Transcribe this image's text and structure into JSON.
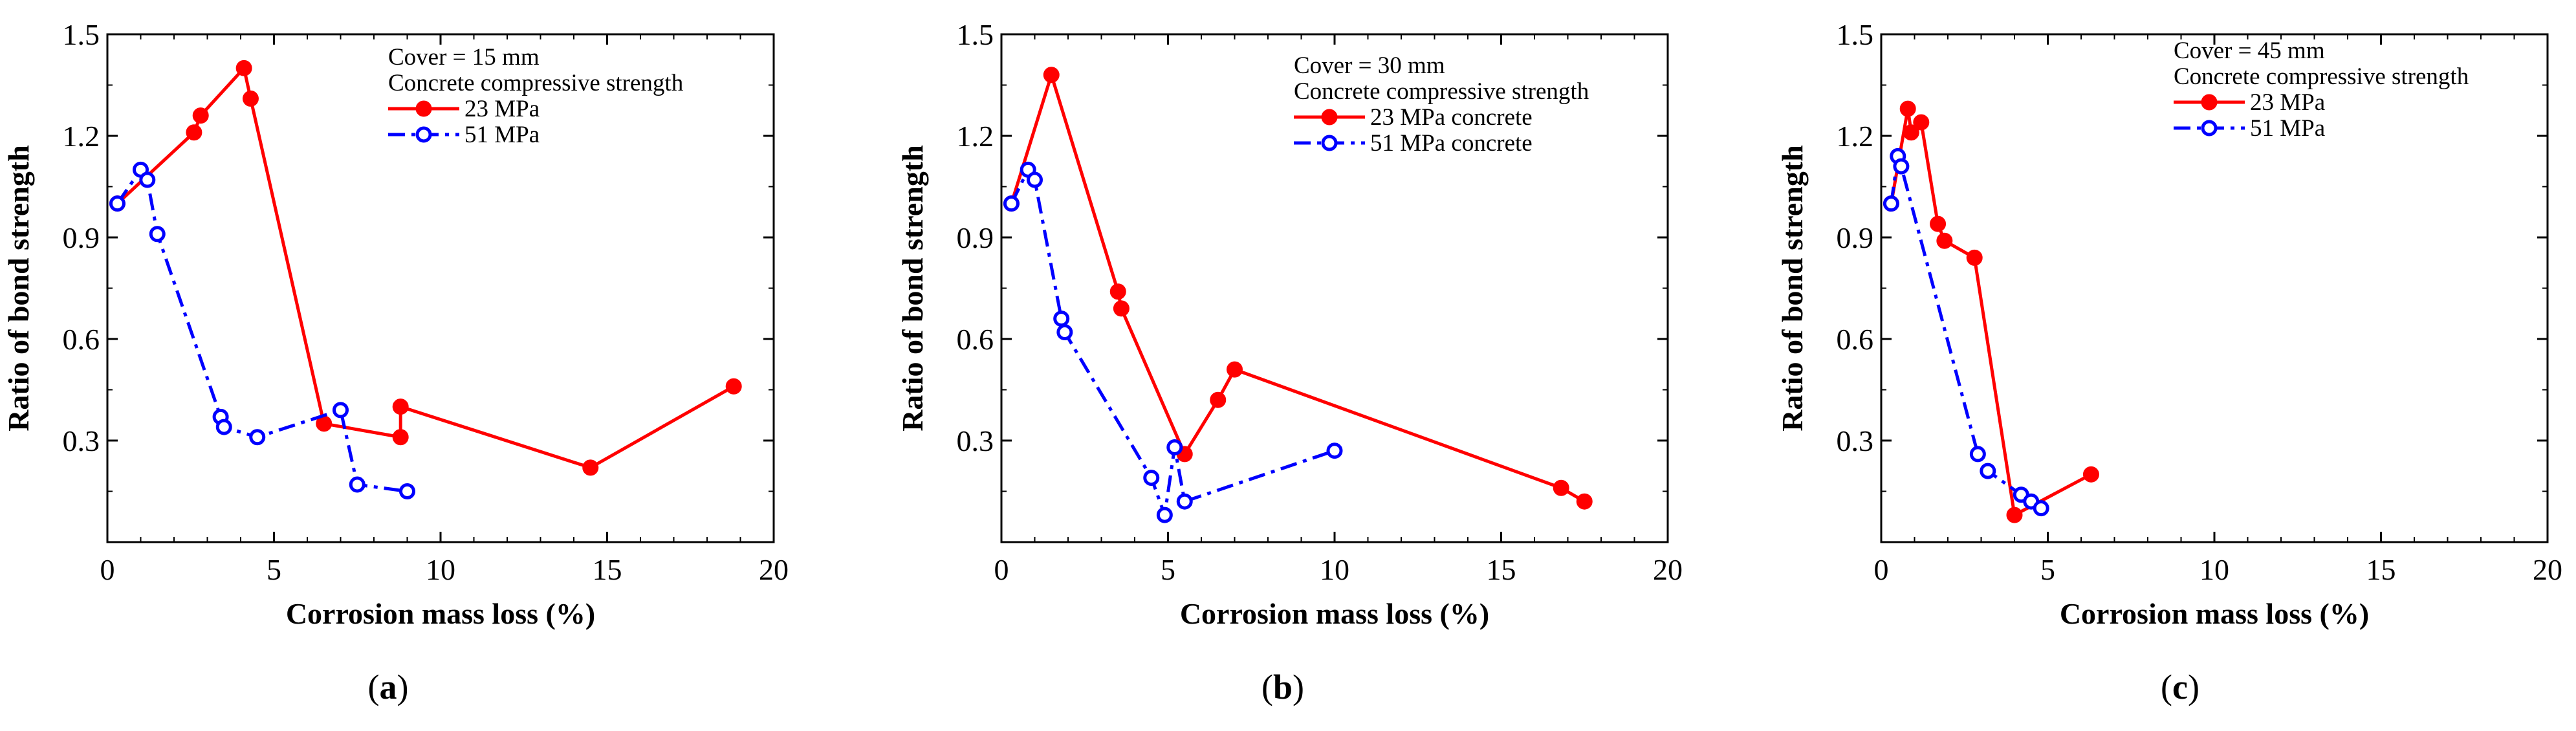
{
  "chart_data": [
    {
      "type": "line",
      "panel_label": "a",
      "xlabel": "Corrosion mass loss (%)",
      "ylabel": "Ratio of bond strength",
      "xlim": [
        0,
        20
      ],
      "ylim": [
        0,
        1.5
      ],
      "xticks": [
        "0",
        "5",
        "10",
        "15",
        "20"
      ],
      "yticks": [
        "0.3",
        "0.6",
        "0.9",
        "1.2",
        "1.5"
      ],
      "legend_title": [
        "Cover = 15 mm",
        "Concrete compressive strength"
      ],
      "legend_position": "top-right",
      "series": [
        {
          "name": "23 MPa",
          "color": "#ff0000",
          "marker": "filled-circle",
          "line": "solid",
          "x": [
            0.3,
            2.6,
            2.8,
            4.1,
            4.3,
            6.5,
            8.8,
            8.8,
            14.5,
            18.8
          ],
          "y": [
            1.0,
            1.21,
            1.26,
            1.4,
            1.31,
            0.35,
            0.31,
            0.4,
            0.22,
            0.46
          ]
        },
        {
          "name": "51 MPa",
          "color": "#0000ff",
          "marker": "open-circle",
          "line": "dash-dot",
          "x": [
            0.3,
            1.0,
            1.2,
            1.5,
            3.4,
            3.5,
            4.5,
            7.0,
            7.5,
            9.0
          ],
          "y": [
            1.0,
            1.1,
            1.07,
            0.91,
            0.37,
            0.34,
            0.31,
            0.39,
            0.17,
            0.15
          ]
        }
      ]
    },
    {
      "type": "line",
      "panel_label": "b",
      "xlabel": "Corrosion mass loss (%)",
      "ylabel": "Ratio of bond strength",
      "xlim": [
        0,
        20
      ],
      "ylim": [
        0,
        1.5
      ],
      "xticks": [
        "0",
        "5",
        "10",
        "15",
        "20"
      ],
      "yticks": [
        "0.3",
        "0.6",
        "0.9",
        "1.2",
        "1.5"
      ],
      "legend_title": [
        "Cover = 30 mm",
        "Concrete compressive strength"
      ],
      "legend_position": "top-right",
      "series": [
        {
          "name": "23 MPa concrete",
          "color": "#ff0000",
          "marker": "filled-circle",
          "line": "solid",
          "x": [
            0.3,
            1.5,
            3.5,
            3.6,
            5.5,
            6.5,
            7.0,
            16.8,
            17.5
          ],
          "y": [
            1.0,
            1.38,
            0.74,
            0.69,
            0.26,
            0.42,
            0.51,
            0.16,
            0.12
          ]
        },
        {
          "name": "51 MPa concrete",
          "color": "#0000ff",
          "marker": "open-circle",
          "line": "dash-dot",
          "x": [
            0.3,
            0.8,
            1.0,
            1.8,
            1.9,
            4.5,
            4.9,
            5.2,
            5.5,
            10.0
          ],
          "y": [
            1.0,
            1.1,
            1.07,
            0.66,
            0.62,
            0.19,
            0.08,
            0.28,
            0.12,
            0.27
          ]
        }
      ]
    },
    {
      "type": "line",
      "panel_label": "c",
      "xlabel": "Corrosion mass loss (%)",
      "ylabel": "Ratio of bond strength",
      "xlim": [
        0,
        20
      ],
      "ylim": [
        0,
        1.5
      ],
      "xticks": [
        "0",
        "5",
        "10",
        "15",
        "20"
      ],
      "yticks": [
        "0.3",
        "0.6",
        "0.9",
        "1.2",
        "1.5"
      ],
      "legend_title": [
        "Cover = 45 mm",
        "Concrete compressive strength"
      ],
      "legend_position": "top-right",
      "series": [
        {
          "name": "23 MPa",
          "color": "#ff0000",
          "marker": "filled-circle",
          "line": "solid",
          "x": [
            0.3,
            0.8,
            0.9,
            1.2,
            1.7,
            1.9,
            2.8,
            4.0,
            6.3
          ],
          "y": [
            1.0,
            1.28,
            1.21,
            1.24,
            0.94,
            0.89,
            0.84,
            0.08,
            0.2
          ]
        },
        {
          "name": "51 MPa",
          "color": "#0000ff",
          "marker": "open-circle",
          "line": "dash-dot",
          "x": [
            0.3,
            0.5,
            0.6,
            2.9,
            3.2,
            4.2,
            4.5,
            4.8
          ],
          "y": [
            1.0,
            1.14,
            1.11,
            0.26,
            0.21,
            0.14,
            0.12,
            0.1
          ]
        }
      ]
    }
  ]
}
